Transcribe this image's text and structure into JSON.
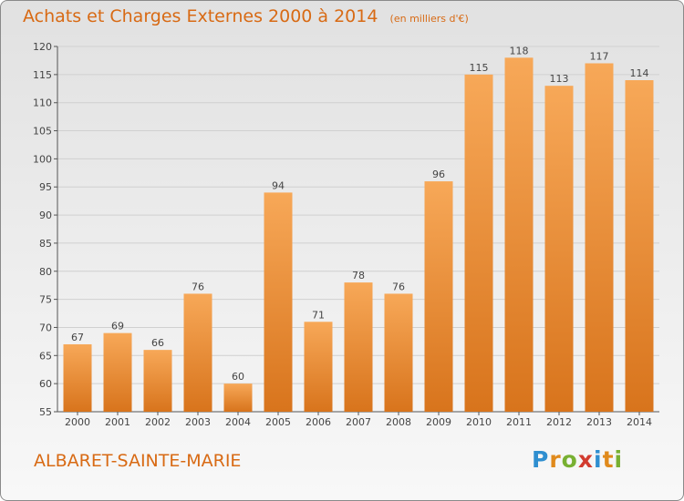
{
  "title": "Achats et Charges Externes 2000 à 2014",
  "subtitle": "(en milliers d'€)",
  "commune": "ALBARET-SAINTE-MARIE",
  "logo": {
    "text": "Proxiti",
    "letters": [
      {
        "ch": "P",
        "color": "#2f8fd0"
      },
      {
        "ch": "r",
        "color": "#e08a1c"
      },
      {
        "ch": "o",
        "color": "#78b032"
      },
      {
        "ch": "x",
        "color": "#d23b2f"
      },
      {
        "ch": "i",
        "color": "#2f8fd0"
      },
      {
        "ch": "t",
        "color": "#e08a1c"
      },
      {
        "ch": "i",
        "color": "#78b032"
      }
    ]
  },
  "colors": {
    "bar_top": "#f7a858",
    "bar_bottom": "#d8741c",
    "text_accent": "#d86a14"
  },
  "chart_data": {
    "type": "bar",
    "categories": [
      "2000",
      "2001",
      "2002",
      "2003",
      "2004",
      "2005",
      "2006",
      "2007",
      "2008",
      "2009",
      "2010",
      "2011",
      "2012",
      "2013",
      "2014"
    ],
    "values": [
      67,
      69,
      66,
      76,
      60,
      94,
      71,
      78,
      76,
      96,
      115,
      118,
      113,
      117,
      114
    ],
    "value_labels": [
      "67",
      "69",
      "66",
      "76",
      "60",
      "94",
      "71",
      "78",
      "76",
      "96",
      "115",
      "118",
      "113",
      "117",
      "114"
    ],
    "ylim": [
      55,
      120
    ],
    "yticks": [
      "55",
      "60",
      "65",
      "70",
      "75",
      "80",
      "85",
      "90",
      "95",
      "100",
      "105",
      "110",
      "115",
      "120"
    ],
    "grid": true
  }
}
